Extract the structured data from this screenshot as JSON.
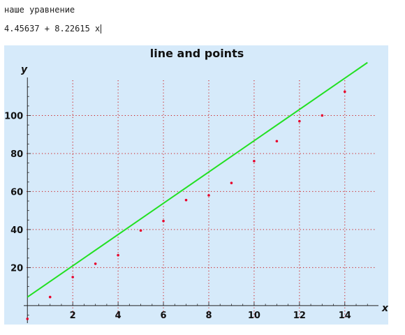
{
  "notebook": {
    "label": "наше уравнение",
    "formula": "4.45637 + 8.22615 x"
  },
  "chart_data": {
    "type": "scatter",
    "title": "line and points",
    "xlabel": "x",
    "ylabel": "y",
    "xlim": [
      -0.1,
      15.3
    ],
    "ylim": [
      -8.5,
      120
    ],
    "xticks": [
      2,
      4,
      6,
      8,
      10,
      12,
      14
    ],
    "yticks": [
      20,
      40,
      60,
      80,
      100
    ],
    "xtick_labels": [
      "2",
      "4",
      "6",
      "8",
      "10",
      "12",
      "14"
    ],
    "ytick_labels": [
      "20",
      "40",
      "60",
      "80",
      "100"
    ],
    "grid": true,
    "legend": "none",
    "colors": {
      "background": "#d6eafa",
      "line": "#22e022",
      "points": "#e8002a",
      "grid": "#cc1111",
      "axis": "#222222"
    },
    "fit_line": {
      "intercept": 4.45637,
      "slope": 8.22615,
      "x_range": [
        0,
        15
      ]
    },
    "series": [
      {
        "type": "points",
        "x": [
          0,
          1,
          2,
          3,
          4,
          5,
          6,
          7,
          8,
          9,
          10,
          11,
          12,
          13,
          14
        ],
        "y": [
          -7,
          4.5,
          15,
          22,
          26.5,
          39.5,
          44.5,
          55.5,
          58,
          64.5,
          76,
          86.5,
          97,
          100,
          112.5
        ]
      }
    ]
  }
}
